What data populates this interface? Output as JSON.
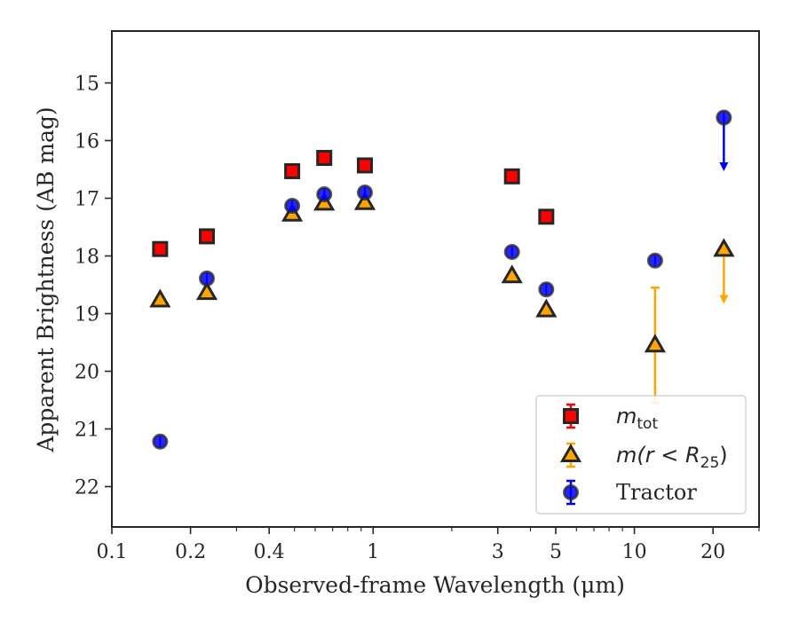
{
  "chart_data": {
    "type": "scatter",
    "title": "",
    "xlabel": "Observed-frame Wavelength (μm)",
    "ylabel": "Apparent Brightness (AB mag)",
    "xscale": "log",
    "yscale": "linear",
    "y_inverted": true,
    "xlim": [
      0.1,
      30
    ],
    "ylim": [
      22.7,
      14.1
    ],
    "xticks": [
      0.1,
      0.2,
      0.4,
      1,
      3,
      5,
      10,
      20
    ],
    "xtick_labels": [
      "0.1",
      "0.2",
      "0.4",
      "1",
      "3",
      "5",
      "10",
      "20"
    ],
    "yticks": [
      15,
      16,
      17,
      18,
      19,
      20,
      21,
      22
    ],
    "ytick_labels": [
      "15",
      "16",
      "17",
      "18",
      "19",
      "20",
      "21",
      "22"
    ],
    "grid": false,
    "legend_position": "lower-right",
    "series": [
      {
        "name": "m_tot",
        "legend_label": {
          "base": "m",
          "sub": "tot"
        },
        "marker": "square",
        "color": "#ff0000",
        "edge_color": "#262626",
        "points": [
          {
            "x": 0.153,
            "y": 17.88
          },
          {
            "x": 0.231,
            "y": 17.66
          },
          {
            "x": 0.49,
            "y": 16.53
          },
          {
            "x": 0.65,
            "y": 16.3
          },
          {
            "x": 0.93,
            "y": 16.43
          },
          {
            "x": 3.4,
            "y": 16.62
          },
          {
            "x": 4.6,
            "y": 17.32
          }
        ]
      },
      {
        "name": "m(r < R25)",
        "legend_label": {
          "base": "m(r < R",
          "sub": "25",
          "tail": ")"
        },
        "marker": "triangle",
        "color": "#ffa500",
        "edge_color": "#262626",
        "points": [
          {
            "x": 0.153,
            "y": 18.77
          },
          {
            "x": 0.231,
            "y": 18.64
          },
          {
            "x": 0.49,
            "y": 17.28
          },
          {
            "x": 0.65,
            "y": 17.09
          },
          {
            "x": 0.93,
            "y": 17.08
          },
          {
            "x": 3.4,
            "y": 18.35
          },
          {
            "x": 4.6,
            "y": 18.94
          },
          {
            "x": 12.0,
            "y": 19.55,
            "err_low": 1.0,
            "err_high": 1.0
          },
          {
            "x": 22.0,
            "y": 17.89,
            "upper_limit": true,
            "arrow_to": 18.8
          }
        ]
      },
      {
        "name": "Tractor",
        "marker": "circle",
        "color": "#0000ff",
        "edge_color": "#262626",
        "points": [
          {
            "x": 0.153,
            "y": 21.22
          },
          {
            "x": 0.231,
            "y": 18.39
          },
          {
            "x": 0.49,
            "y": 17.13
          },
          {
            "x": 0.65,
            "y": 16.93
          },
          {
            "x": 0.93,
            "y": 16.9
          },
          {
            "x": 3.4,
            "y": 17.93
          },
          {
            "x": 4.6,
            "y": 18.58
          },
          {
            "x": 12.0,
            "y": 18.08
          },
          {
            "x": 22.0,
            "y": 15.6,
            "upper_limit": true,
            "arrow_to": 16.5
          }
        ]
      }
    ]
  }
}
